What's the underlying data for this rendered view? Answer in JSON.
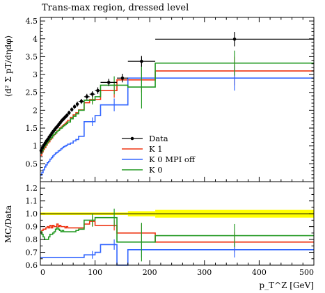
{
  "chart_data": {
    "type": "line",
    "title": "Trans-max region, dressed level",
    "top_panel": {
      "ylabel": "⟨d² Σ pT/dηdφ⟩",
      "ylim": [
        0,
        4.6
      ],
      "yticks": [
        "0.5",
        "1",
        "1.5",
        "2",
        "2.5",
        "3",
        "3.5",
        "4",
        "4.5"
      ]
    },
    "ratio_panel": {
      "ylabel": "MC/Data",
      "ylim": [
        0.6,
        1.25
      ],
      "yticks": [
        "0.6",
        "0.7",
        "0.8",
        "0.9",
        "1.0",
        "1.1",
        "1.2"
      ],
      "band_color": "#ffff00"
    },
    "xlabel": "p_T^Z [GeV]",
    "xlim": [
      0,
      500
    ],
    "xticks": [
      "0",
      "100",
      "200",
      "300",
      "400",
      "500"
    ],
    "bin_edges": [
      0,
      2.5,
      5,
      7.5,
      10,
      12.5,
      15,
      17.5,
      20,
      22.5,
      25,
      27.5,
      30,
      32.5,
      35,
      37.5,
      40,
      42.5,
      45,
      47.5,
      50,
      55,
      60,
      65,
      70,
      80,
      90,
      100,
      110,
      140,
      160,
      210,
      500
    ],
    "data": {
      "name": "Data",
      "color": "#000000",
      "x": [
        1.25,
        3.75,
        6.25,
        8.75,
        11.25,
        13.75,
        16.25,
        18.75,
        21.25,
        23.75,
        26.25,
        28.75,
        31.25,
        33.75,
        36.25,
        38.75,
        41.25,
        43.75,
        46.25,
        48.75,
        52.5,
        57.5,
        62.5,
        67.5,
        75,
        85,
        95,
        105,
        125,
        150,
        185,
        355
      ],
      "y": [
        0.87,
        0.95,
        1.02,
        1.08,
        1.14,
        1.19,
        1.25,
        1.3,
        1.36,
        1.41,
        1.46,
        1.51,
        1.55,
        1.6,
        1.65,
        1.7,
        1.74,
        1.78,
        1.82,
        1.86,
        1.93,
        2.02,
        2.1,
        2.17,
        2.25,
        2.38,
        2.45,
        2.55,
        2.78,
        2.9,
        3.37,
        3.99
      ],
      "err": [
        0.06,
        0.05,
        0.05,
        0.05,
        0.05,
        0.05,
        0.05,
        0.05,
        0.05,
        0.05,
        0.05,
        0.05,
        0.05,
        0.05,
        0.05,
        0.05,
        0.05,
        0.05,
        0.05,
        0.05,
        0.06,
        0.06,
        0.06,
        0.07,
        0.07,
        0.08,
        0.08,
        0.09,
        0.1,
        0.12,
        0.15,
        0.2
      ]
    },
    "series": [
      {
        "name": "K 1",
        "color": "#ee3311",
        "values": [
          0.74,
          0.83,
          0.9,
          0.95,
          1.02,
          1.08,
          1.12,
          1.18,
          1.22,
          1.28,
          1.32,
          1.36,
          1.42,
          1.44,
          1.5,
          1.53,
          1.56,
          1.6,
          1.63,
          1.67,
          1.72,
          1.8,
          1.87,
          1.93,
          2.01,
          2.21,
          2.3,
          2.3,
          2.55,
          2.85,
          2.85,
          3.1
        ],
        "marker_x": [
          95,
          135,
          185,
          355
        ],
        "marker_err": [
          0.1,
          0.2,
          0.35,
          0.4
        ],
        "ratio": [
          0.85,
          0.87,
          0.88,
          0.88,
          0.89,
          0.9,
          0.89,
          0.91,
          0.89,
          0.91,
          0.9,
          0.9,
          0.92,
          0.9,
          0.91,
          0.9,
          0.9,
          0.9,
          0.89,
          0.9,
          0.89,
          0.89,
          0.89,
          0.89,
          0.89,
          0.92,
          0.94,
          0.91,
          0.91,
          0.85,
          0.85,
          0.78
        ],
        "ratio_err": [
          0.04,
          0.04,
          0.07,
          0.08
        ]
      },
      {
        "name": "K 0 MPI off",
        "color": "#3366ff",
        "values": [
          0.18,
          0.25,
          0.33,
          0.41,
          0.47,
          0.53,
          0.57,
          0.63,
          0.67,
          0.72,
          0.76,
          0.8,
          0.82,
          0.86,
          0.88,
          0.92,
          0.95,
          0.98,
          1.0,
          1.02,
          1.05,
          1.08,
          1.14,
          1.18,
          1.27,
          1.68,
          1.68,
          1.85,
          2.15,
          2.15,
          2.9,
          2.9
        ],
        "marker_x": [
          95,
          135,
          185,
          355
        ],
        "marker_err": [
          0.12,
          0.18,
          0.3,
          0.35
        ],
        "ratio": [
          0.66,
          0.66,
          0.66,
          0.66,
          0.66,
          0.66,
          0.66,
          0.66,
          0.66,
          0.66,
          0.66,
          0.66,
          0.66,
          0.66,
          0.66,
          0.66,
          0.66,
          0.66,
          0.66,
          0.66,
          0.66,
          0.66,
          0.66,
          0.66,
          0.66,
          0.68,
          0.68,
          0.7,
          0.76,
          0.59,
          0.72,
          0.72
        ],
        "ratio_err": [
          0.03,
          0.04,
          0.06,
          0.06
        ]
      },
      {
        "name": "K 0",
        "color": "#229922",
        "values": [
          0.8,
          0.86,
          0.94,
          1.0,
          1.05,
          1.11,
          1.16,
          1.2,
          1.24,
          1.3,
          1.33,
          1.37,
          1.41,
          1.44,
          1.48,
          1.5,
          1.54,
          1.57,
          1.6,
          1.63,
          1.67,
          1.76,
          1.83,
          1.9,
          2.0,
          2.28,
          2.28,
          2.38,
          2.7,
          2.7,
          2.65,
          3.32
        ],
        "marker_x": [
          95,
          135,
          185,
          355
        ],
        "marker_err": [
          0.12,
          0.25,
          0.6,
          0.35
        ],
        "ratio": [
          0.86,
          0.84,
          0.82,
          0.8,
          0.8,
          0.8,
          0.82,
          0.84,
          0.84,
          0.85,
          0.86,
          0.88,
          0.89,
          0.88,
          0.87,
          0.86,
          0.87,
          0.86,
          0.86,
          0.86,
          0.86,
          0.86,
          0.86,
          0.87,
          0.88,
          0.95,
          0.95,
          0.97,
          0.97,
          0.78,
          0.78,
          0.83
        ],
        "ratio_err": [
          0.05,
          0.07,
          0.15,
          0.09
        ]
      }
    ],
    "legend": {
      "placement": "center-right"
    }
  }
}
